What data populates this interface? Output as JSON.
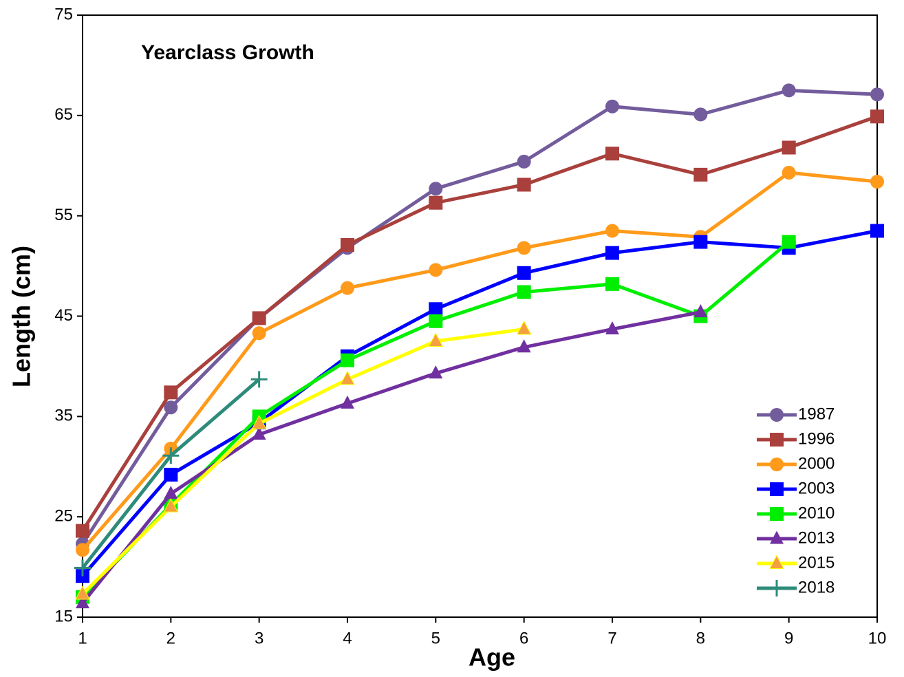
{
  "chart_data": {
    "type": "line",
    "title": "Yearclass Growth",
    "x_label": "Age",
    "y_label": "Length (cm)",
    "x": [
      1,
      2,
      3,
      4,
      5,
      6,
      7,
      8,
      9,
      10
    ],
    "xlim": [
      1,
      10
    ],
    "xticks": [
      1,
      2,
      3,
      4,
      5,
      6,
      7,
      8,
      9,
      10
    ],
    "ylim": [
      15,
      75
    ],
    "yticks": [
      15,
      25,
      35,
      45,
      55,
      65,
      75
    ],
    "legend": "lower right",
    "series": [
      {
        "name": "1987",
        "color": "#735c9c",
        "marker": "circle",
        "values": [
          22.3,
          35.9,
          44.8,
          51.8,
          57.7,
          60.4,
          65.9,
          65.1,
          67.5,
          67.1
        ]
      },
      {
        "name": "1996",
        "color": "#a9403c",
        "marker": "square",
        "values": [
          23.6,
          37.4,
          44.8,
          52.1,
          56.3,
          58.1,
          61.2,
          59.1,
          61.8,
          64.9
        ]
      },
      {
        "name": "2000",
        "color": "#ff9a1a",
        "marker": "circle",
        "values": [
          21.7,
          31.8,
          43.3,
          47.8,
          49.6,
          51.8,
          53.5,
          52.9,
          59.3,
          58.4
        ]
      },
      {
        "name": "2003",
        "color": "#0000ff",
        "marker": "square",
        "values": [
          19.1,
          29.2,
          34.4,
          41.0,
          45.7,
          49.3,
          51.3,
          52.4,
          51.8,
          53.5
        ]
      },
      {
        "name": "2010",
        "color": "#00ee00",
        "marker": "square",
        "values": [
          17.0,
          26.2,
          35.0,
          40.6,
          44.5,
          47.4,
          48.2,
          45.0,
          52.4,
          null
        ]
      },
      {
        "name": "2013",
        "color": "#7030a0",
        "marker": "triangle",
        "values": [
          16.4,
          27.3,
          33.2,
          36.3,
          39.3,
          41.9,
          43.7,
          45.4,
          null,
          null
        ]
      },
      {
        "name": "2015",
        "color": "#ffff00",
        "marker": "triangle",
        "marker_color": "#f5a040",
        "values": [
          17.3,
          26.0,
          34.3,
          38.7,
          42.5,
          43.7,
          null,
          null,
          null,
          null
        ]
      },
      {
        "name": "2018",
        "color": "#2e8b7a",
        "marker": "plus",
        "values": [
          19.9,
          31.1,
          38.7,
          null,
          null,
          null,
          null,
          null,
          null,
          null
        ]
      }
    ]
  }
}
